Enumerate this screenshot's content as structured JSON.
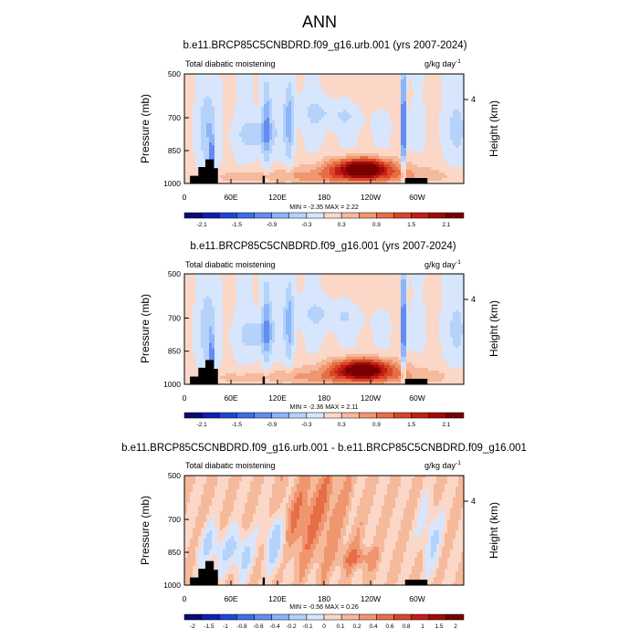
{
  "page_title": "ANN",
  "chart_data": [
    {
      "type": "heatmap",
      "title": "b.e11.BRCP85C5CNBDRD.f09_g16.urb.001 (yrs 2007-2024)",
      "left_label": "Total diabatic moistening",
      "units_label": "g/kg day",
      "units_exp": "-1",
      "ylabel": "Pressure (mb)",
      "right_ylabel": "Height (km)",
      "right_tick": "4",
      "yticks": [
        "500",
        "700",
        "850",
        "1000"
      ],
      "xticks": [
        "0",
        "60E",
        "120E",
        "180",
        "120W",
        "60W"
      ],
      "stats": "MIN = -2.35   MAX =  2.22",
      "colorbar_labels": [
        "-2.1",
        "-1.5",
        "-0.9",
        "-0.3",
        "0.3",
        "0.9",
        "1.5",
        "2.1"
      ],
      "colors": [
        "#0a0a78",
        "#0f1eb9",
        "#1e46d2",
        "#3c6ee6",
        "#648cf0",
        "#8cb4f8",
        "#b4d2fa",
        "#d7e6fc",
        "#fbd7c8",
        "#f5b99b",
        "#f0966e",
        "#e66e46",
        "#d74628",
        "#c31e14",
        "#a00a0a",
        "#780000"
      ]
    },
    {
      "type": "heatmap",
      "title": "b.e11.BRCP85C5CNBDRD.f09_g16.001 (yrs 2007-2024)",
      "left_label": "Total diabatic moistening",
      "units_label": "g/kg day",
      "units_exp": "-1",
      "ylabel": "Pressure (mb)",
      "right_ylabel": "Height (km)",
      "right_tick": "4",
      "yticks": [
        "500",
        "700",
        "850",
        "1000"
      ],
      "xticks": [
        "0",
        "60E",
        "120E",
        "180",
        "120W",
        "60W"
      ],
      "stats": "MIN = -2.36   MAX =  2.11",
      "colorbar_labels": [
        "-2.1",
        "-1.5",
        "-0.9",
        "-0.3",
        "0.3",
        "0.9",
        "1.5",
        "2.1"
      ],
      "colors": [
        "#0a0a78",
        "#0f1eb9",
        "#1e46d2",
        "#3c6ee6",
        "#648cf0",
        "#8cb4f8",
        "#b4d2fa",
        "#d7e6fc",
        "#fbd7c8",
        "#f5b99b",
        "#f0966e",
        "#e66e46",
        "#d74628",
        "#c31e14",
        "#a00a0a",
        "#780000"
      ]
    },
    {
      "type": "heatmap",
      "title": "b.e11.BRCP85C5CNBDRD.f09_g16.urb.001 - b.e11.BRCP85C5CNBDRD.f09_g16.001",
      "left_label": "Total diabatic moistening",
      "units_label": "g/kg day",
      "units_exp": "-1",
      "ylabel": "Pressure (mb)",
      "right_ylabel": "Height (km)",
      "right_tick": "4",
      "yticks": [
        "500",
        "700",
        "850",
        "1000"
      ],
      "xticks": [
        "0",
        "60E",
        "120E",
        "180",
        "120W",
        "60W"
      ],
      "stats": "MIN = -0.56   MAX =  0.26",
      "colorbar_labels": [
        "-2",
        "-1.5",
        "-1",
        "-0.8",
        "-0.6",
        "-0.4",
        "-0.2",
        "-0.1",
        "0",
        "0.1",
        "0.2",
        "0.4",
        "0.6",
        "0.8",
        "1",
        "1.5",
        "2"
      ],
      "colors": [
        "#0a0a78",
        "#0f1eb9",
        "#1e46d2",
        "#3c6ee6",
        "#648cf0",
        "#8cb4f8",
        "#b4d2fa",
        "#d7e6fc",
        "#fbd7c8",
        "#f5b99b",
        "#f0966e",
        "#e66e46",
        "#d74628",
        "#c31e14",
        "#a00a0a",
        "#780000"
      ]
    }
  ]
}
